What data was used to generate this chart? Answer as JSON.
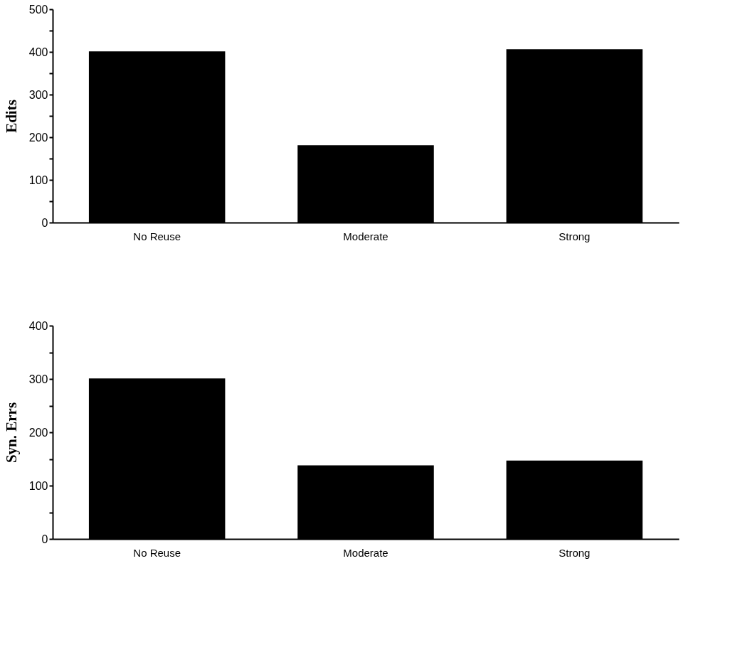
{
  "chart_data": [
    {
      "type": "bar",
      "categories": [
        "No Reuse",
        "Moderate",
        "Strong"
      ],
      "values": [
        400,
        180,
        405
      ],
      "color": "#000000",
      "ylabel": "Edits",
      "ylim": [
        0,
        500
      ],
      "yticks": [
        0,
        {
          "value": 50,
          "label": null
        },
        100,
        {
          "value": 150,
          "label": null
        },
        200,
        {
          "value": 250,
          "label": null
        },
        300,
        {
          "value": 350,
          "label": null
        },
        400,
        {
          "value": 450,
          "label": null
        },
        500
      ],
      "grid": false
    },
    {
      "type": "bar",
      "categories": [
        "No Reuse",
        "Moderate",
        "Strong"
      ],
      "values": [
        300,
        137,
        146
      ],
      "color": "#000000",
      "ylabel": "Syn. Errs",
      "ylim": [
        0,
        400
      ],
      "yticks": [
        0,
        {
          "value": 50,
          "label": null
        },
        100,
        {
          "value": 150,
          "label": null
        },
        200,
        {
          "value": 250,
          "label": null
        },
        300,
        {
          "value": 350,
          "label": null
        },
        400
      ],
      "grid": false
    }
  ]
}
